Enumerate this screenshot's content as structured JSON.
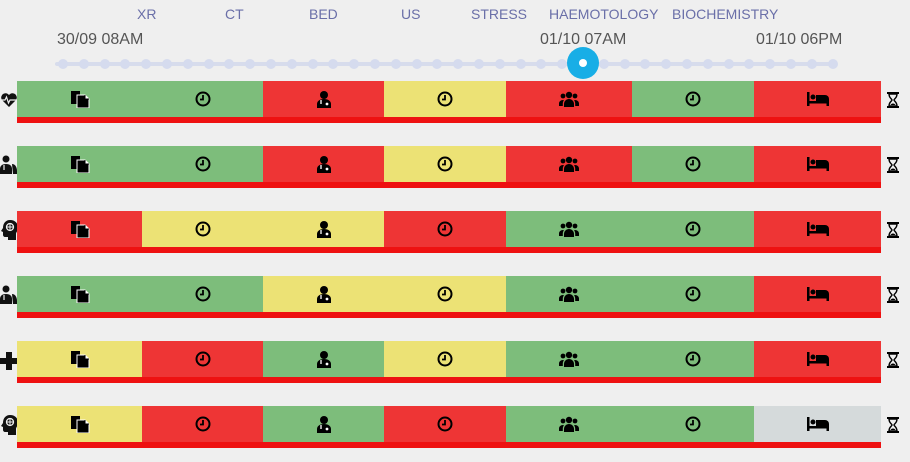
{
  "categories": [
    {
      "label": "XR"
    },
    {
      "label": "CT"
    },
    {
      "label": "BED"
    },
    {
      "label": "US"
    },
    {
      "label": "STRESS"
    },
    {
      "label": "HAEMOTOLOGY"
    },
    {
      "label": "BIOCHEMISTRY"
    }
  ],
  "timeline": {
    "start_label": "30/09 08AM",
    "current_label": "01/10 07AM",
    "end_label": "01/10 06PM",
    "colors": {
      "knob": "#18aee6",
      "track": "#d7dcec"
    }
  },
  "status_colors": {
    "green": "#7dbd7b",
    "red": "#ee3535",
    "yellow": "#ece275",
    "none": "#d5dadb",
    "bar": "#ee1111"
  },
  "rows": [
    {
      "left_icon": "heart-pulse-icon",
      "segments": [
        "green",
        "green",
        "red",
        "yellow",
        "red",
        "green",
        "red"
      ]
    },
    {
      "left_icon": "lungs-doctor-icon",
      "segments": [
        "green",
        "green",
        "red",
        "yellow",
        "red",
        "green",
        "red"
      ]
    },
    {
      "left_icon": "brain-head-icon",
      "segments": [
        "red",
        "yellow",
        "yellow",
        "red",
        "green",
        "green",
        "red"
      ]
    },
    {
      "left_icon": "lungs-doctor-icon",
      "segments": [
        "green",
        "green",
        "yellow",
        "yellow",
        "green",
        "green",
        "red"
      ]
    },
    {
      "left_icon": "medical-cross-icon",
      "segments": [
        "yellow",
        "red",
        "green",
        "yellow",
        "green",
        "green",
        "red"
      ]
    },
    {
      "left_icon": "brain-head-icon",
      "segments": [
        "yellow",
        "red",
        "green",
        "red",
        "green",
        "green",
        "none"
      ]
    }
  ],
  "segment_icons": [
    "document-copy-icon",
    "clock-icon",
    "doctor-icon",
    "clock-icon",
    "group-icon",
    "clock-icon",
    "bed-icon"
  ],
  "right_icon": "hourglass-icon"
}
